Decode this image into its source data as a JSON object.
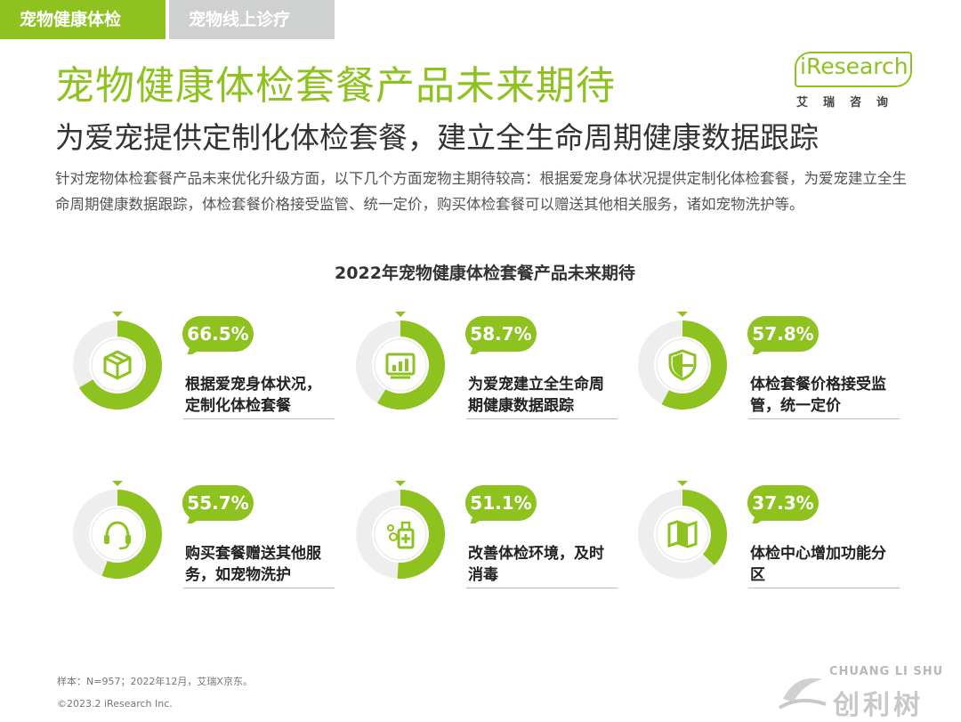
{
  "tabs": [
    {
      "label": "宠物健康体检"
    },
    {
      "label": "宠物线上诊疗"
    }
  ],
  "header": {
    "title": "宠物健康体检套餐产品未来期待",
    "subtitle": "为爱宠提供定制化体检套餐，建立全生命周期健康数据跟踪",
    "description": "针对宠物体检套餐产品未来优化升级方面，以下几个方面宠物主期待较高：根据爱宠身体状况提供定制化体检套餐，为爱宠建立全生命周期健康数据跟踪，体检套餐价格接受监管、统一定价，购买体检套餐可以赠送其他相关服务，诸如宠物洗护等。"
  },
  "logo": {
    "text": "iResearch",
    "cn": "艾瑞咨询"
  },
  "colors": {
    "accent": "#8dc21f",
    "track": "#eeeeee",
    "tab_inactive": "#cfd1d0"
  },
  "chart_data": {
    "type": "donut",
    "title": "2022年宠物健康体检套餐产品未来期待",
    "unit": "%",
    "items": [
      {
        "label": "根据爱宠身体状况，定制化体检套餐",
        "value": 66.5,
        "value_text": "66.5%",
        "icon": "box-icon"
      },
      {
        "label": "为爱宠建立全生命周期健康数据跟踪",
        "value": 58.7,
        "value_text": "58.7%",
        "icon": "bar-chart-icon"
      },
      {
        "label": "体检套餐价格接受监管，统一定价",
        "value": 57.8,
        "value_text": "57.8%",
        "icon": "shield-icon"
      },
      {
        "label": "购买套餐赠送其他服务，如宠物洗护",
        "value": 55.7,
        "value_text": "55.7%",
        "icon": "headset-icon"
      },
      {
        "label": "改善体检环境，及时消毒",
        "value": 51.1,
        "value_text": "51.1%",
        "icon": "sanitizer-icon"
      },
      {
        "label": "体检中心增加功能分区",
        "value": 37.3,
        "value_text": "37.3%",
        "icon": "map-icon"
      }
    ]
  },
  "footer": {
    "note": "样本：N=957；2022年12月，艾瑞X京东。",
    "copyright": "©2023.2 iResearch Inc."
  },
  "watermark": {
    "en": "CHUANG LI SHU",
    "cn": "创利树"
  }
}
